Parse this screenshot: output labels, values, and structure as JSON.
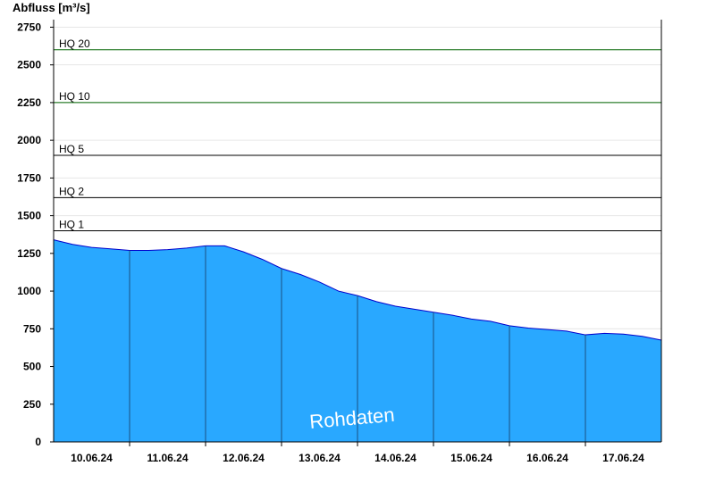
{
  "chart_data": {
    "type": "area",
    "ylabel": "Abfluss [m³/s]",
    "ylim": [
      0,
      2800
    ],
    "yticks": [
      0,
      250,
      500,
      750,
      1000,
      1250,
      1500,
      1750,
      2000,
      2250,
      2500,
      2750
    ],
    "xlim": [
      "2024-06-09T12:00",
      "2024-06-17T12:00"
    ],
    "xticks": [
      {
        "label": "10.06.24",
        "x": "2024-06-10T00:00"
      },
      {
        "label": "11.06.24",
        "x": "2024-06-11T00:00"
      },
      {
        "label": "12.06.24",
        "x": "2024-06-12T00:00"
      },
      {
        "label": "13.06.24",
        "x": "2024-06-13T00:00"
      },
      {
        "label": "14.06.24",
        "x": "2024-06-14T00:00"
      },
      {
        "label": "15.06.24",
        "x": "2024-06-15T00:00"
      },
      {
        "label": "16.06.24",
        "x": "2024-06-16T00:00"
      },
      {
        "label": "17.06.24",
        "x": "2024-06-17T00:00"
      }
    ],
    "day_separators": [
      "2024-06-10T12:00",
      "2024-06-11T12:00",
      "2024-06-12T12:00",
      "2024-06-13T12:00",
      "2024-06-14T12:00",
      "2024-06-15T12:00",
      "2024-06-16T12:00"
    ],
    "thresholds": [
      {
        "label": "HQ 1",
        "value": 1400,
        "color": "#000000"
      },
      {
        "label": "HQ 2",
        "value": 1620,
        "color": "#000000"
      },
      {
        "label": "HQ 5",
        "value": 1900,
        "color": "#000000"
      },
      {
        "label": "HQ 10",
        "value": 2250,
        "color": "#006400"
      },
      {
        "label": "HQ 20",
        "value": 2600,
        "color": "#006400"
      }
    ],
    "series": [
      {
        "x": [
          "2024-06-09T12:00",
          "2024-06-09T18:00",
          "2024-06-10T00:00",
          "2024-06-10T06:00",
          "2024-06-10T12:00",
          "2024-06-10T18:00",
          "2024-06-11T00:00",
          "2024-06-11T06:00",
          "2024-06-11T12:00",
          "2024-06-11T18:00",
          "2024-06-12T00:00",
          "2024-06-12T06:00",
          "2024-06-12T12:00",
          "2024-06-12T18:00",
          "2024-06-13T00:00",
          "2024-06-13T06:00",
          "2024-06-13T12:00",
          "2024-06-13T18:00",
          "2024-06-14T00:00",
          "2024-06-14T06:00",
          "2024-06-14T12:00",
          "2024-06-14T18:00",
          "2024-06-15T00:00",
          "2024-06-15T06:00",
          "2024-06-15T12:00",
          "2024-06-15T18:00",
          "2024-06-16T00:00",
          "2024-06-16T06:00",
          "2024-06-16T12:00",
          "2024-06-16T18:00",
          "2024-06-17T00:00",
          "2024-06-17T06:00",
          "2024-06-17T12:00"
        ],
        "y": [
          1340,
          1310,
          1290,
          1280,
          1270,
          1270,
          1275,
          1285,
          1300,
          1300,
          1260,
          1210,
          1150,
          1110,
          1060,
          1000,
          970,
          930,
          900,
          880,
          860,
          840,
          815,
          800,
          770,
          755,
          745,
          735,
          710,
          720,
          715,
          700,
          675
        ]
      }
    ],
    "colors": {
      "fill": "#29a8ff",
      "line": "#0000cc"
    },
    "watermark": "Rohdaten"
  }
}
